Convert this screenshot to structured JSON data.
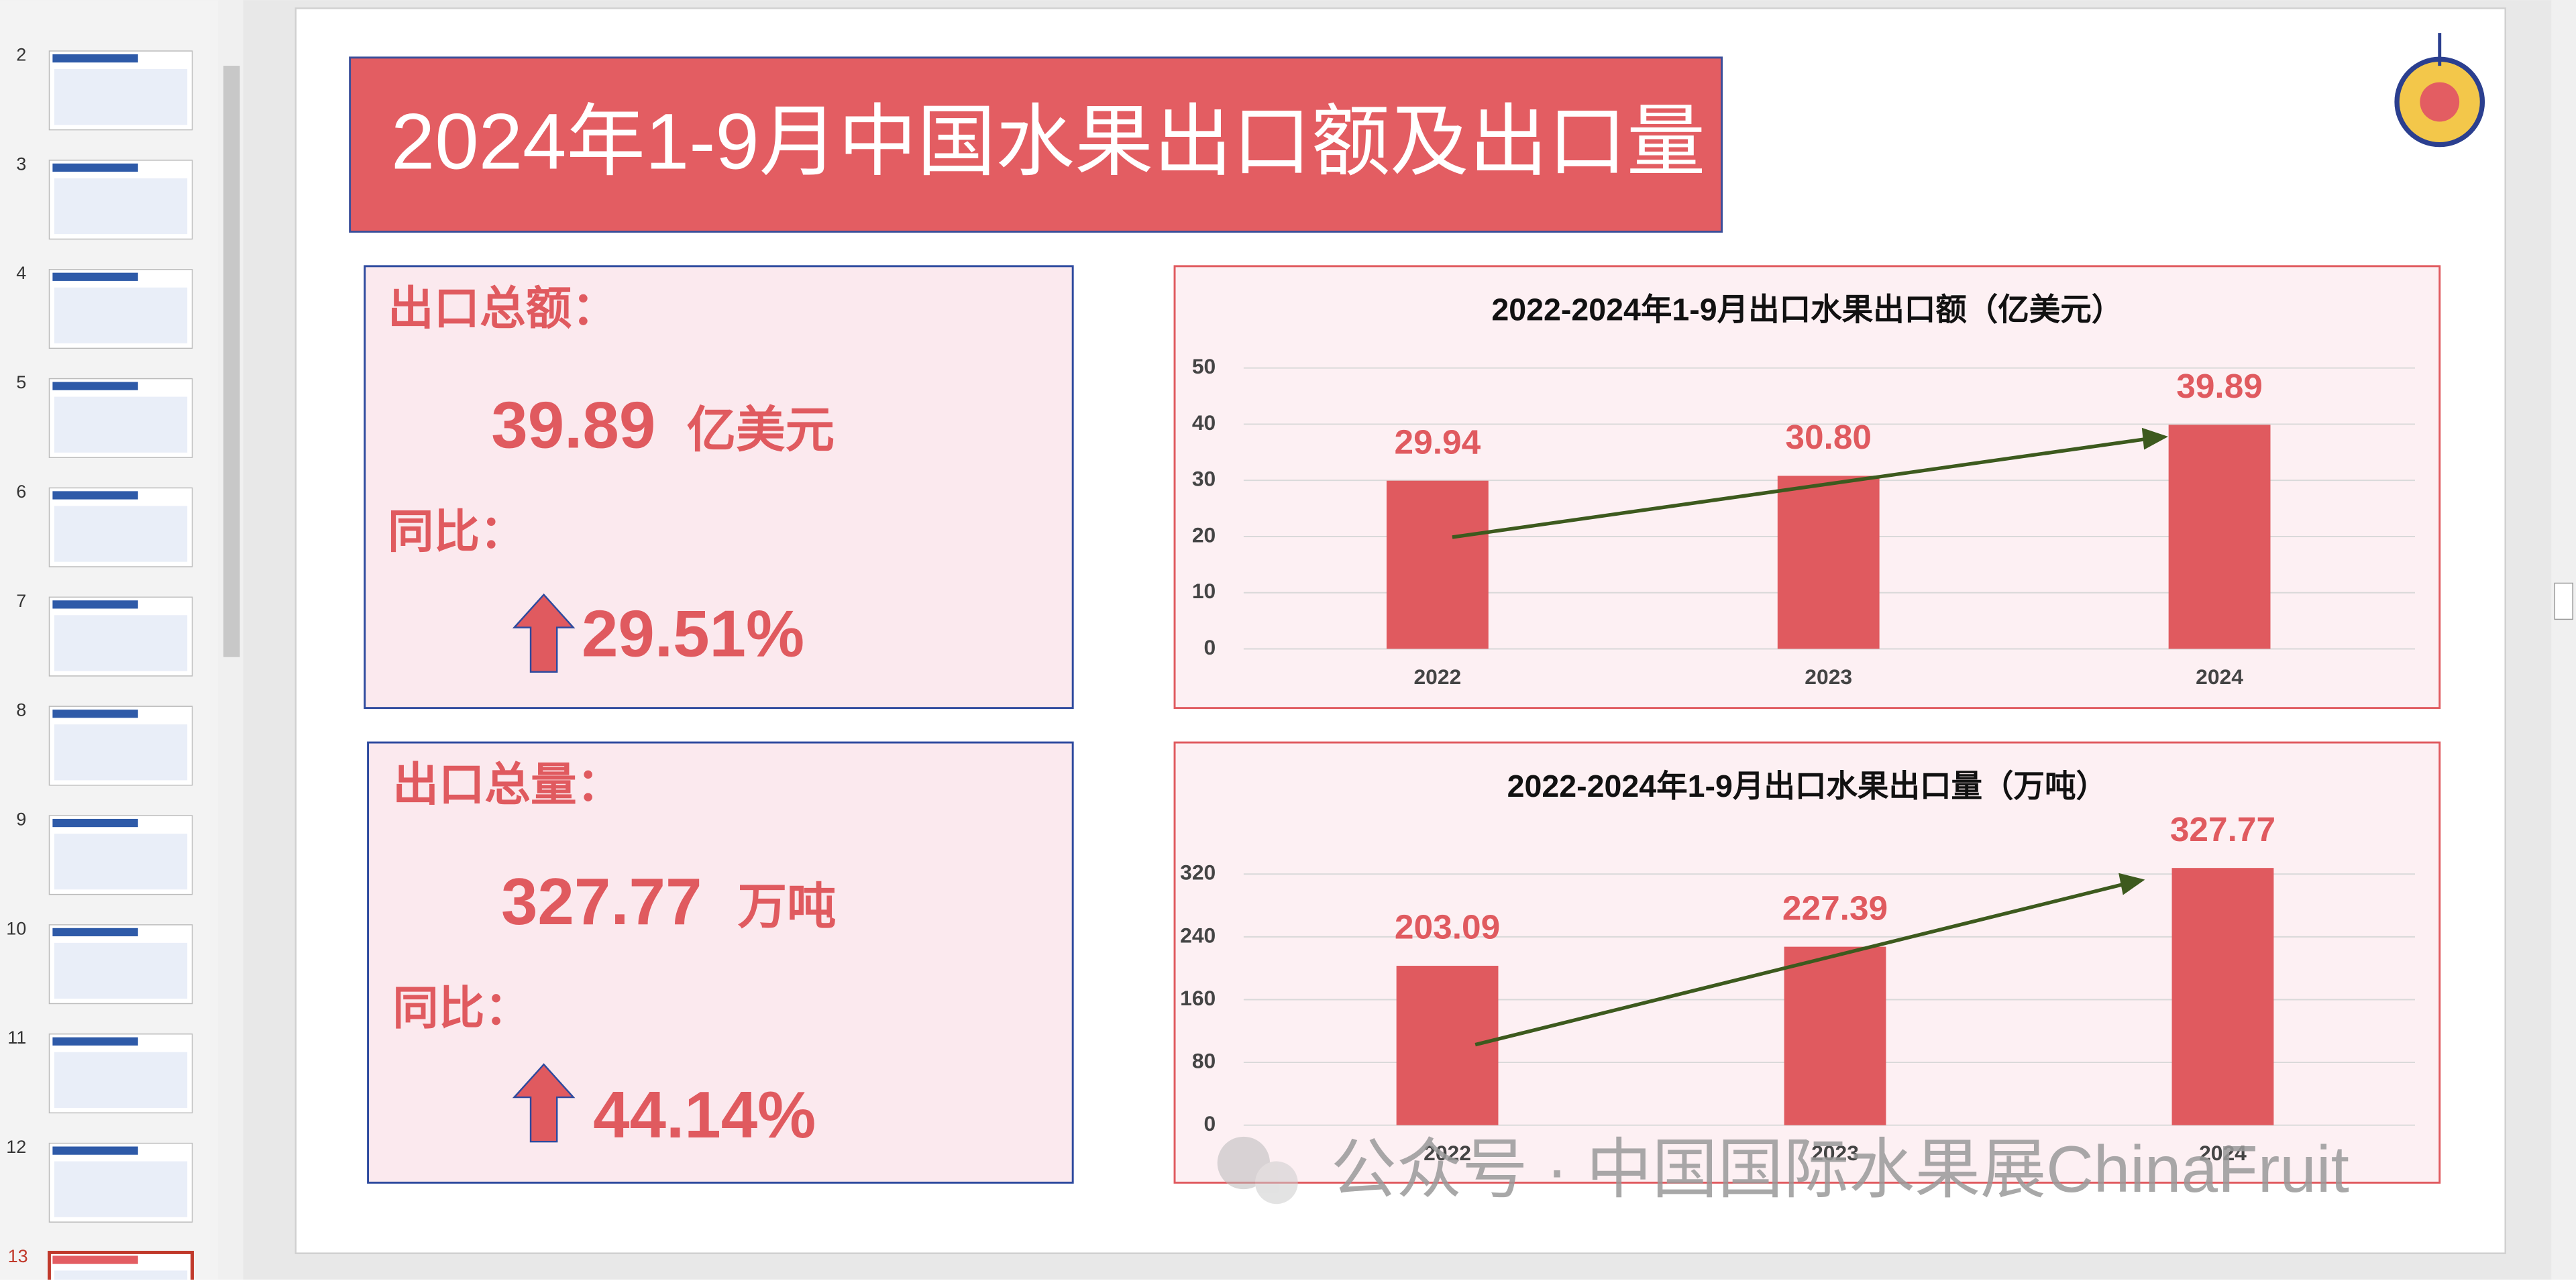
{
  "thumbnails": [
    "2",
    "3",
    "4",
    "5",
    "6",
    "7",
    "8",
    "9",
    "10",
    "11",
    "12",
    "13"
  ],
  "slide_title": "2024年1-9月中国水果出口额及出口量",
  "panels": [
    {
      "heading": "出口总额：",
      "value": "39.89",
      "unit": "亿美元",
      "yoy_label": "同比：",
      "yoy": "29.51%"
    },
    {
      "heading": "出口总量：",
      "value": "327.77",
      "unit": "万吨",
      "yoy_label": "同比：",
      "yoy": "44.14%"
    }
  ],
  "watermark": "公众号 · 中国国际水果展ChinaFruit",
  "chart_data": [
    {
      "type": "bar",
      "title": "2022-2024年1-9月出口水果出口额（亿美元）",
      "categories": [
        "2022",
        "2023",
        "2024"
      ],
      "values": [
        29.94,
        30.8,
        39.89
      ],
      "value_labels": [
        "29.94",
        "30.80",
        "39.89"
      ],
      "color": "#e05a5f",
      "ylim": [
        0,
        50
      ],
      "yticks": [
        0,
        10,
        20,
        30,
        40,
        50
      ],
      "grid": true
    },
    {
      "type": "bar",
      "title": "2022-2024年1-9月出口水果出口量（万吨）",
      "categories": [
        "2022",
        "2023",
        "2024"
      ],
      "values": [
        203.09,
        227.39,
        327.77
      ],
      "value_labels": [
        "203.09",
        "227.39",
        "327.77"
      ],
      "color": "#e05a5f",
      "ylim": [
        0,
        360
      ],
      "yticks": [
        0,
        80,
        160,
        240,
        320
      ],
      "grid": true
    }
  ]
}
